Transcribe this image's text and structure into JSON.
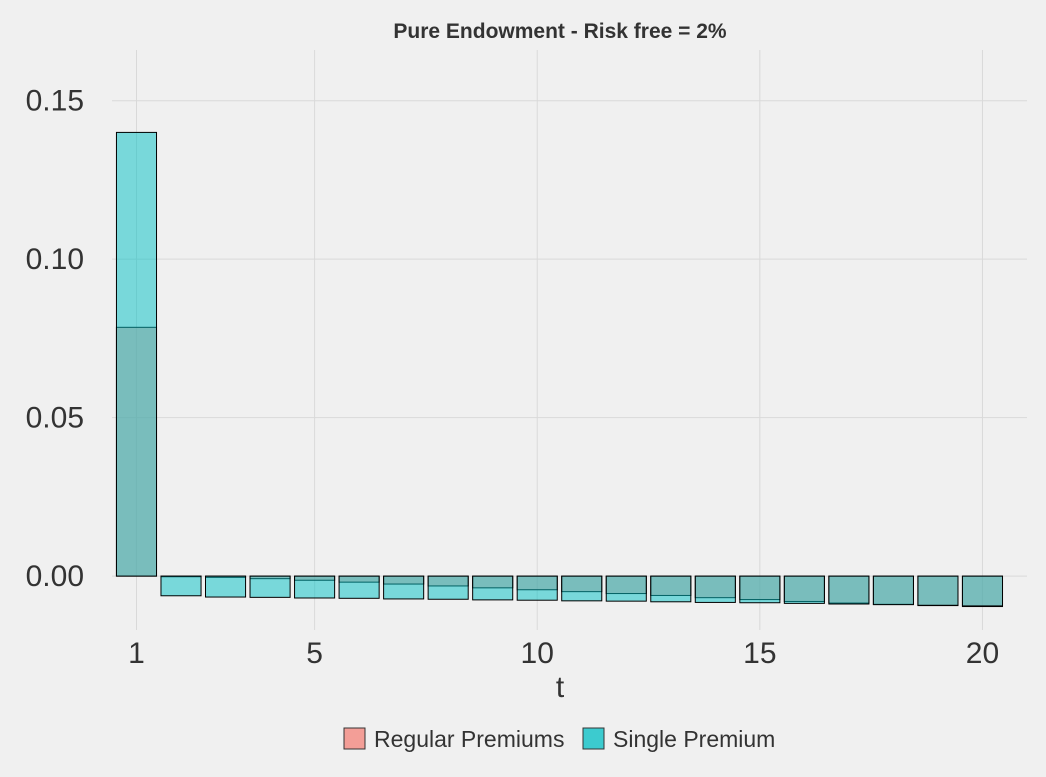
{
  "chart_data": {
    "type": "bar",
    "title": "Pure Endowment - Risk free = 2%",
    "xlabel": "t",
    "ylabel": "",
    "x": [
      1,
      2,
      3,
      4,
      5,
      6,
      7,
      8,
      9,
      10,
      11,
      12,
      13,
      14,
      15,
      16,
      17,
      18,
      19,
      20
    ],
    "x_ticks": [
      "1",
      "5",
      "10",
      "15",
      "20"
    ],
    "y_ticks": [
      "0.00",
      "0.05",
      "0.10",
      "0.15"
    ],
    "xlim": [
      0.45,
      21.0
    ],
    "ylim": [
      -0.017,
      0.166
    ],
    "grid": true,
    "overlay": true,
    "legend_position": "bottom",
    "series": [
      {
        "name": "Regular Premiums",
        "color": "#f4837a",
        "values": [
          0.0785,
          -0.0002,
          -0.0004,
          -0.0008,
          -0.0013,
          -0.0019,
          -0.0025,
          -0.0031,
          -0.0037,
          -0.0043,
          -0.0049,
          -0.0055,
          -0.0061,
          -0.0068,
          -0.0074,
          -0.008,
          -0.0085,
          -0.0089,
          -0.0093,
          -0.0096
        ]
      },
      {
        "name": "Single Premium",
        "color": "#00bfc4",
        "values": [
          0.14,
          -0.0062,
          -0.0066,
          -0.0067,
          -0.0069,
          -0.007,
          -0.0072,
          -0.0073,
          -0.0075,
          -0.0076,
          -0.0078,
          -0.0079,
          -0.0081,
          -0.0083,
          -0.0084,
          -0.0086,
          -0.0088,
          -0.009,
          -0.0092,
          -0.0094
        ]
      }
    ]
  }
}
